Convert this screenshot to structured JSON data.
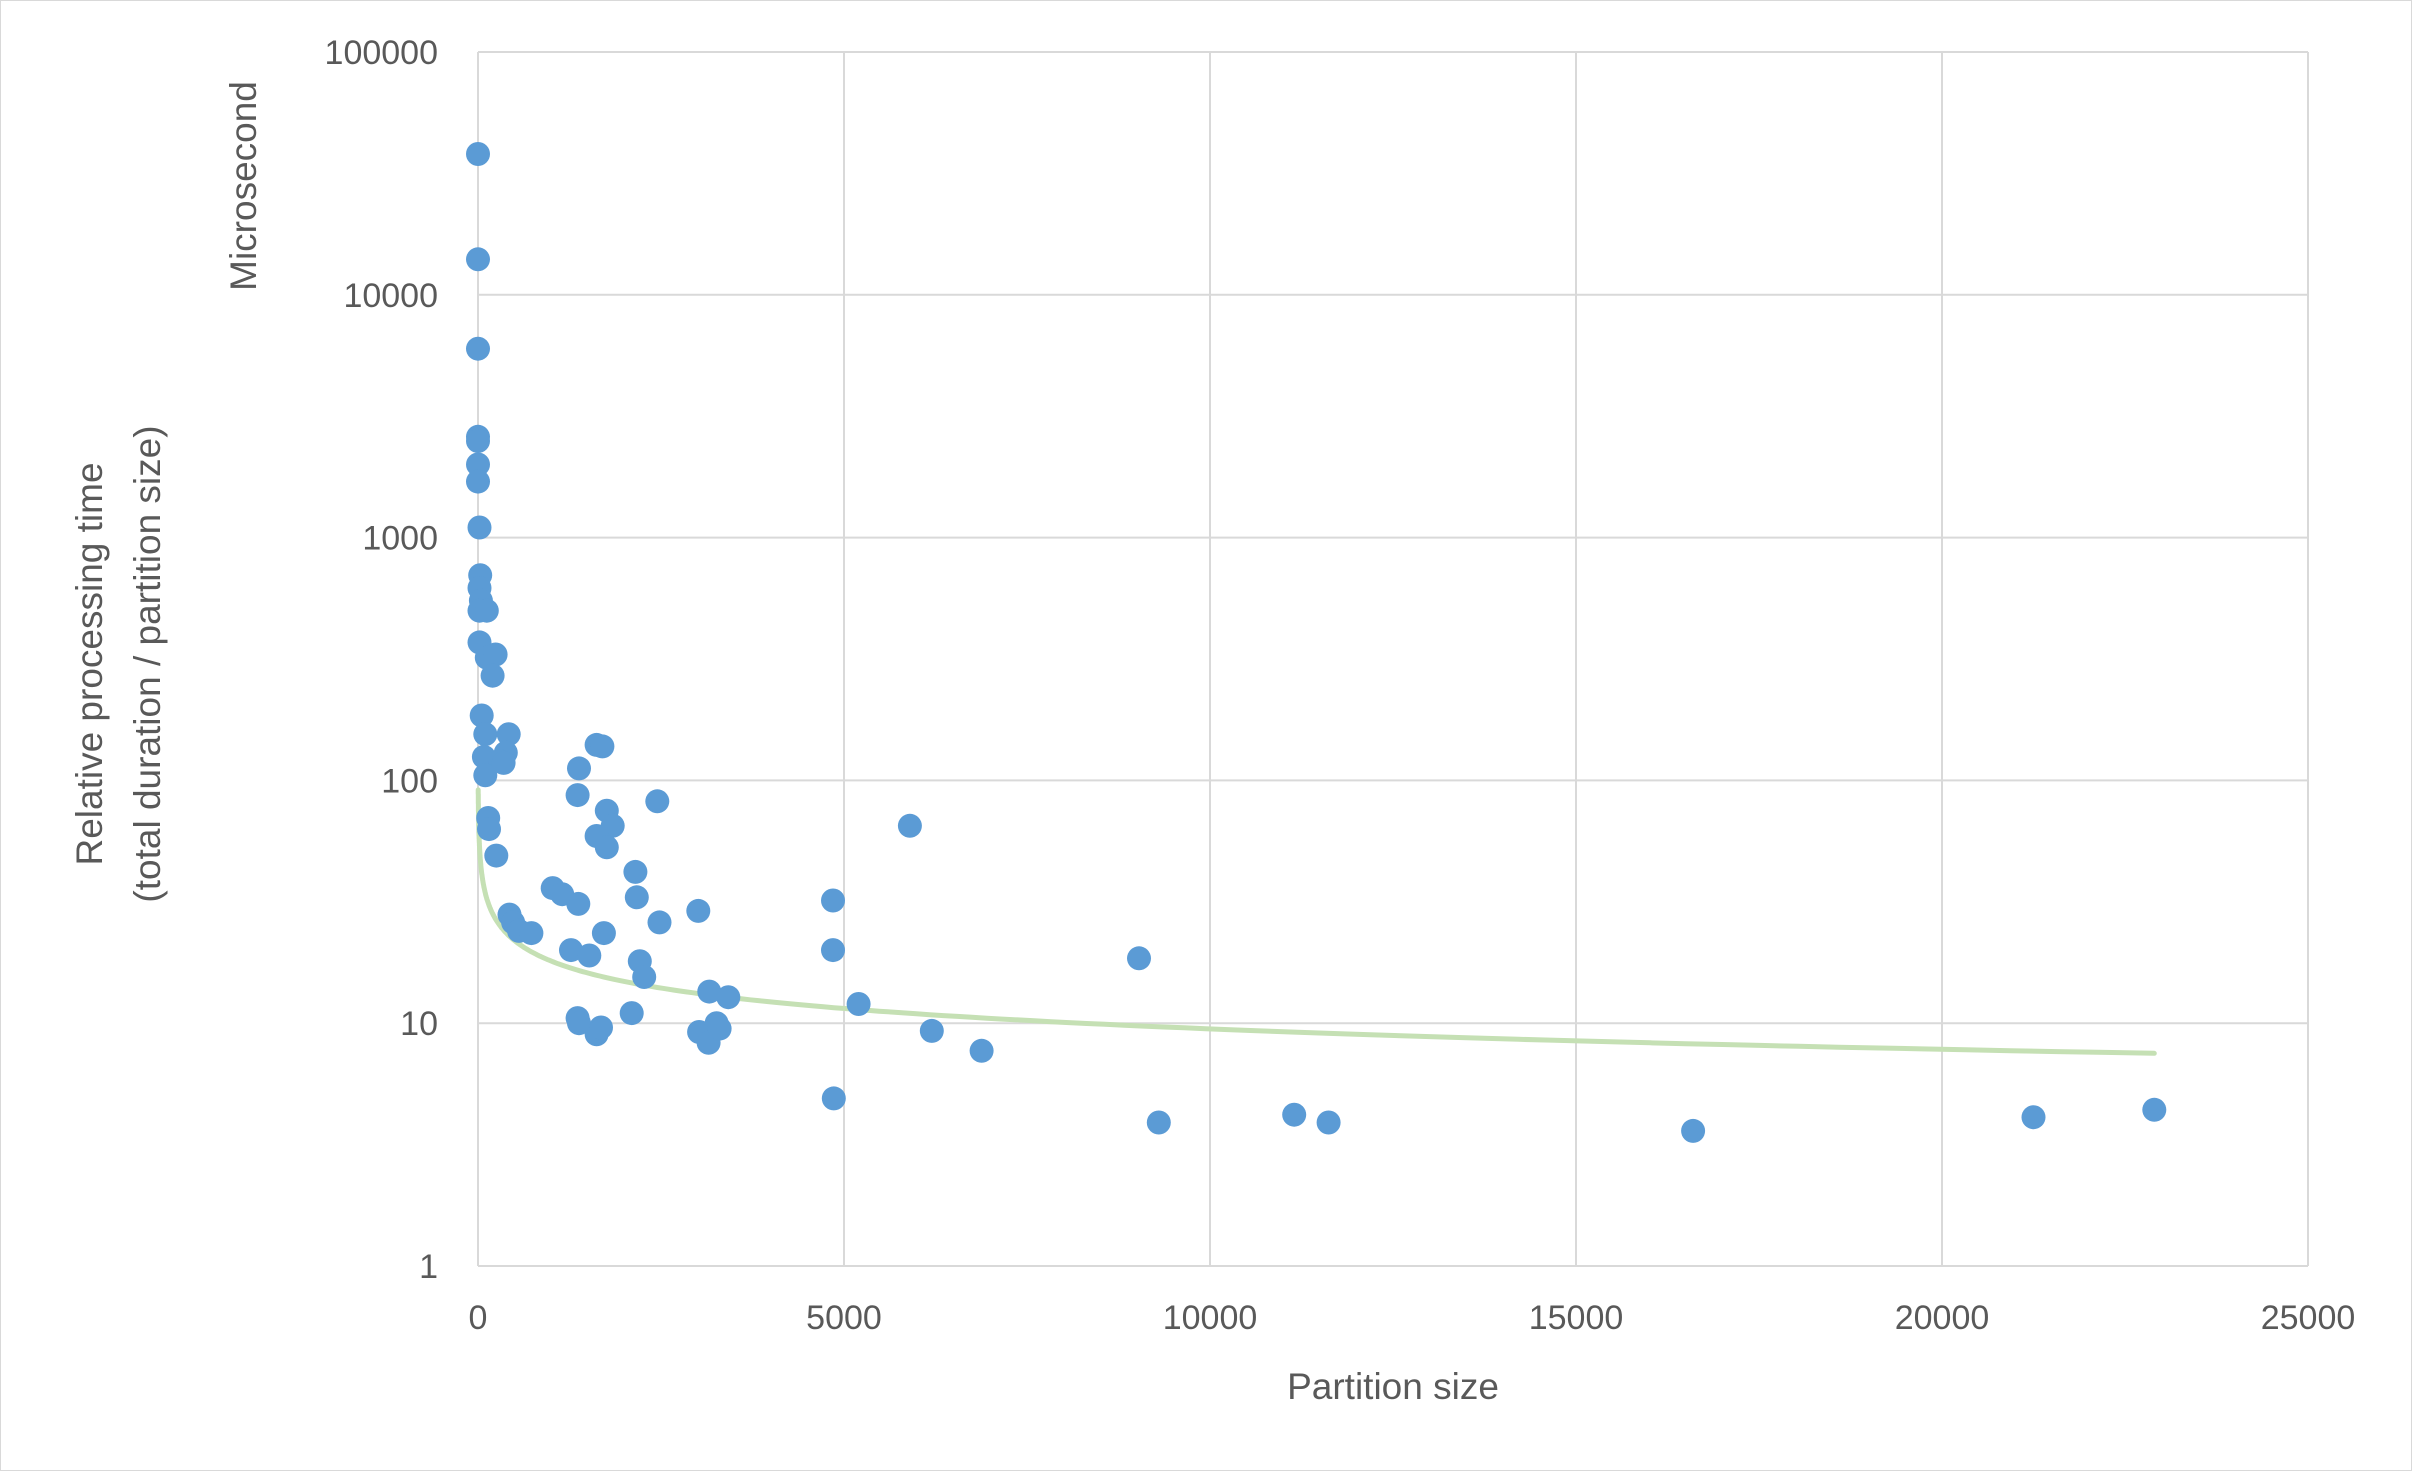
{
  "chart_data": {
    "type": "scatter",
    "title": "",
    "xlabel": "Partition size",
    "ylabel_lines": [
      "Relative processing time",
      "(total duration / partition size)"
    ],
    "unit_label": "Microsecond",
    "xlim": [
      0,
      25000
    ],
    "ylim": [
      1,
      100000
    ],
    "y_scale": "log",
    "x_ticks": [
      "0",
      "5000",
      "10000",
      "15000",
      "20000",
      "25000"
    ],
    "y_ticks": [
      "1",
      "10",
      "100",
      "1000",
      "10000",
      "100000"
    ],
    "grid": true,
    "legend": "none",
    "colors": {
      "points": "#5b9bd5",
      "trendline": "#c5e0b4",
      "grid": "#d9d9d9",
      "text": "#595959"
    },
    "series": [
      {
        "type": "scatter",
        "points": [
          [
            0,
            38000
          ],
          [
            0,
            14000
          ],
          [
            0,
            6000
          ],
          [
            0,
            2600
          ],
          [
            0,
            2500
          ],
          [
            0,
            2000
          ],
          [
            0,
            1700
          ],
          [
            20,
            1100
          ],
          [
            30,
            700
          ],
          [
            20,
            620
          ],
          [
            40,
            550
          ],
          [
            20,
            500
          ],
          [
            120,
            500
          ],
          [
            20,
            370
          ],
          [
            120,
            320
          ],
          [
            240,
            330
          ],
          [
            200,
            270
          ],
          [
            50,
            185
          ],
          [
            100,
            155
          ],
          [
            420,
            155
          ],
          [
            80,
            125
          ],
          [
            380,
            130
          ],
          [
            300,
            120
          ],
          [
            350,
            118
          ],
          [
            100,
            105
          ],
          [
            140,
            70
          ],
          [
            150,
            63
          ],
          [
            250,
            49
          ],
          [
            1380,
            112
          ],
          [
            1360,
            87
          ],
          [
            1620,
            140
          ],
          [
            1700,
            138
          ],
          [
            1760,
            75
          ],
          [
            1840,
            65
          ],
          [
            1620,
            59
          ],
          [
            1760,
            53
          ],
          [
            2450,
            82
          ],
          [
            2150,
            42
          ],
          [
            2170,
            33
          ],
          [
            2480,
            26
          ],
          [
            1020,
            36
          ],
          [
            1150,
            34
          ],
          [
            1370,
            31
          ],
          [
            430,
            28
          ],
          [
            480,
            26
          ],
          [
            560,
            24
          ],
          [
            730,
            23.5
          ],
          [
            1270,
            20
          ],
          [
            1520,
            19
          ],
          [
            1720,
            23.5
          ],
          [
            1360,
            10.5
          ],
          [
            1380,
            10
          ],
          [
            1620,
            9
          ],
          [
            1680,
            9.6
          ],
          [
            2100,
            11
          ],
          [
            2210,
            18
          ],
          [
            2270,
            15.5
          ],
          [
            3010,
            29
          ],
          [
            3020,
            9.2
          ],
          [
            3150,
            8.3
          ],
          [
            3160,
            13.5
          ],
          [
            3260,
            10
          ],
          [
            3300,
            9.5
          ],
          [
            3420,
            12.8
          ],
          [
            4850,
            32
          ],
          [
            4850,
            20
          ],
          [
            4860,
            4.9
          ],
          [
            5200,
            12
          ],
          [
            5900,
            65
          ],
          [
            6200,
            9.3
          ],
          [
            6880,
            7.7
          ],
          [
            9030,
            18.5
          ],
          [
            9300,
            3.9
          ],
          [
            11150,
            4.2
          ],
          [
            11620,
            3.9
          ],
          [
            16600,
            3.6
          ],
          [
            21250,
            4.1
          ],
          [
            22900,
            4.4
          ]
        ]
      },
      {
        "type": "trendline",
        "model": "power",
        "coefficient": 124.2,
        "exponent": -0.2794,
        "x_range": [
          3,
          22900
        ]
      }
    ]
  }
}
